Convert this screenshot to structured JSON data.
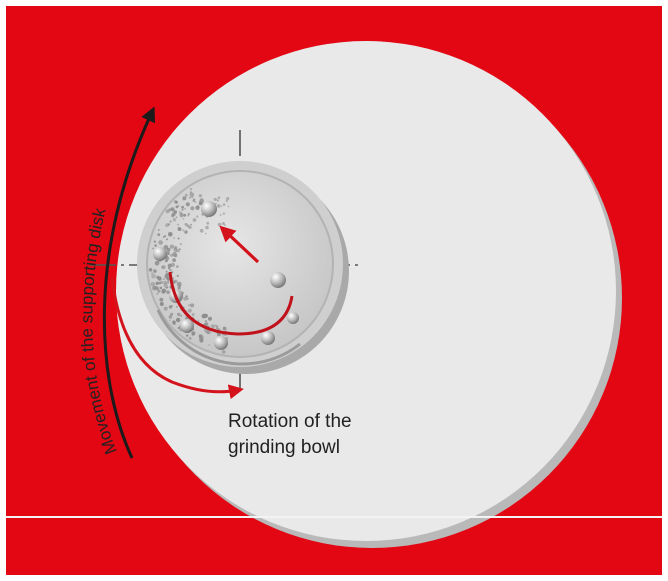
{
  "labels": {
    "disk_movement": "Movement of the supporting disk",
    "bowl_rotation_line1": "Rotation of the",
    "bowl_rotation_line2": "grinding bowl"
  },
  "colors": {
    "background": "#e30613",
    "disk": "#e9e9e9",
    "bowl_rim": "#c9c9c9",
    "bowl_inner": "#d6d6d6",
    "arrow_red": "#d4121c",
    "arrow_dark": "#1b1b1b",
    "text": "#222222"
  }
}
